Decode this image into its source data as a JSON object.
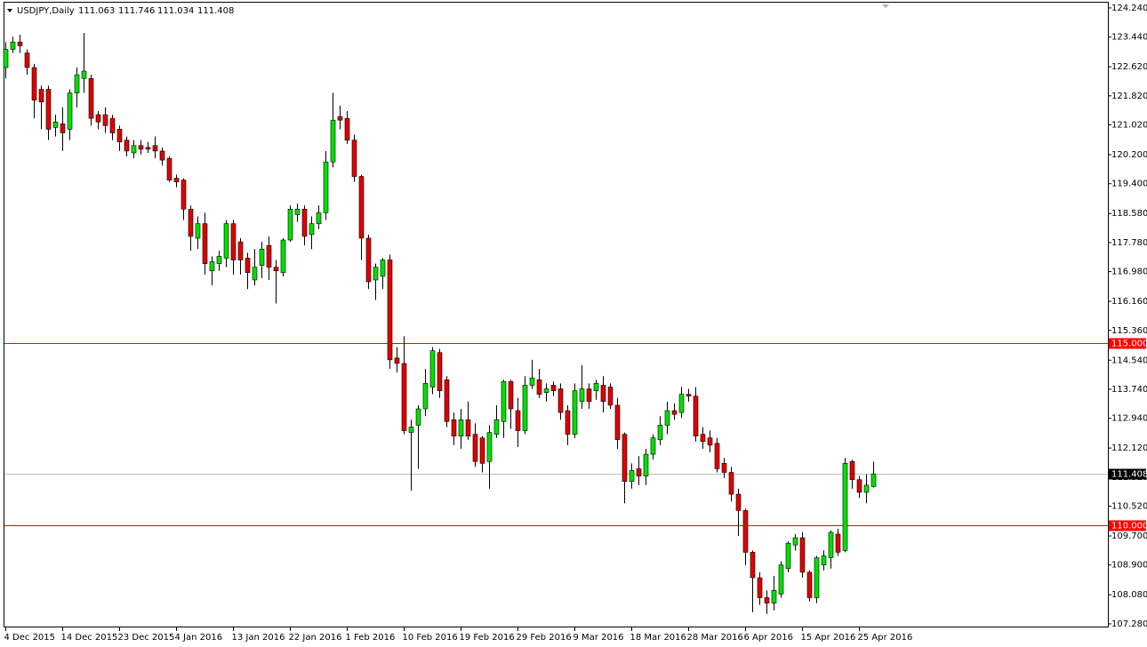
{
  "chart_data": {
    "type": "candlestick",
    "title": "USDJPY,Daily",
    "categories": [
      "4 Dec 2015",
      null,
      null,
      null,
      null,
      null,
      null,
      null,
      "14 Dec 2015",
      null,
      null,
      null,
      null,
      null,
      null,
      null,
      "23 Dec 2015",
      null,
      null,
      null,
      null,
      null,
      null,
      null,
      "4 Jan 2016",
      null,
      null,
      null,
      null,
      null,
      null,
      null,
      "13 Jan 2016",
      null,
      null,
      null,
      null,
      null,
      null,
      null,
      "22 Jan 2016",
      null,
      null,
      null,
      null,
      null,
      null,
      null,
      "1 Feb 2016",
      null,
      null,
      null,
      null,
      null,
      null,
      null,
      "10 Feb 2016",
      null,
      null,
      null,
      null,
      null,
      null,
      null,
      "19 Feb 2016",
      null,
      null,
      null,
      null,
      null,
      null,
      null,
      "29 Feb 2016",
      null,
      null,
      null,
      null,
      null,
      null,
      null,
      "9 Mar 2016",
      null,
      null,
      null,
      null,
      null,
      null,
      null,
      "18 Mar 2016",
      null,
      null,
      null,
      null,
      null,
      null,
      null,
      "28 Mar 2016",
      null,
      null,
      null,
      null,
      null,
      null,
      null,
      "6 Apr 2016",
      null,
      null,
      null,
      null,
      null,
      null,
      null,
      "15 Apr 2016",
      null,
      null,
      null,
      null,
      null,
      null,
      null,
      "25 Apr 2016",
      null,
      null
    ],
    "open": [
      122.6,
      123.1,
      123.3,
      123.0,
      122.6,
      122.0,
      122.0,
      120.95,
      121.05,
      120.9,
      121.9,
      122.3,
      122.3,
      121.3,
      121.3,
      121.2,
      120.9,
      120.6,
      120.25,
      120.45,
      120.4,
      120.45,
      120.3,
      120.1,
      119.55,
      119.5,
      118.7,
      117.9,
      118.3,
      117.0,
      117.2,
      117.35,
      118.3,
      117.8,
      117.35,
      116.75,
      117.15,
      117.7,
      117.1,
      116.95,
      117.85,
      118.55,
      118.7,
      118.0,
      118.3,
      118.6,
      120.0,
      121.25,
      121.2,
      120.6,
      119.6,
      117.9,
      116.75,
      116.85,
      117.3,
      114.6,
      114.45,
      112.55,
      112.75,
      113.2,
      113.8,
      114.75,
      114.0,
      112.9,
      112.45,
      112.9,
      112.5,
      112.4,
      111.75,
      112.5,
      112.85,
      113.95,
      113.15,
      112.6,
      113.85,
      114.0,
      113.65,
      113.85,
      113.75,
      113.15,
      112.5,
      113.4,
      113.75,
      113.7,
      113.85,
      113.8,
      113.3,
      112.5,
      111.2,
      111.55,
      111.35,
      111.95,
      112.35,
      112.75,
      113.15,
      113.1,
      113.6,
      113.55,
      112.5,
      112.4,
      112.25,
      111.7,
      111.45,
      110.85,
      110.4,
      109.25,
      108.55,
      108.0,
      107.85,
      108.1,
      108.8,
      109.45,
      109.65,
      108.7,
      108.0,
      108.9,
      109.1,
      109.75,
      109.3,
      111.75,
      111.25,
      110.9,
      111.063
    ],
    "high": [
      123.3,
      123.45,
      123.5,
      123.1,
      122.7,
      122.1,
      122.1,
      121.3,
      121.5,
      122.0,
      122.6,
      123.55,
      122.4,
      121.4,
      121.5,
      121.3,
      121.0,
      120.7,
      120.6,
      120.6,
      120.55,
      120.7,
      120.4,
      120.15,
      119.65,
      119.55,
      118.8,
      118.5,
      118.6,
      117.4,
      117.55,
      118.4,
      118.4,
      117.9,
      117.5,
      117.6,
      117.8,
      117.95,
      117.3,
      117.9,
      118.8,
      118.85,
      118.8,
      118.5,
      118.8,
      120.3,
      121.9,
      121.55,
      121.4,
      120.75,
      119.65,
      118.0,
      117.2,
      117.35,
      117.45,
      114.9,
      115.2,
      112.9,
      113.3,
      114.3,
      114.9,
      114.85,
      114.1,
      113.1,
      113.2,
      113.4,
      112.8,
      112.45,
      112.75,
      113.3,
      114.0,
      114.0,
      113.5,
      114.1,
      114.55,
      114.3,
      113.9,
      113.95,
      113.9,
      113.3,
      113.9,
      114.4,
      113.9,
      114.0,
      114.1,
      113.9,
      113.5,
      112.55,
      111.7,
      111.9,
      112.1,
      112.5,
      113.0,
      113.4,
      113.35,
      113.8,
      113.75,
      113.8,
      112.7,
      112.6,
      112.4,
      111.85,
      111.6,
      111.0,
      110.45,
      109.3,
      108.7,
      108.2,
      108.6,
      109.0,
      109.55,
      109.75,
      109.8,
      108.75,
      109.15,
      109.3,
      109.85,
      109.9,
      111.85,
      111.8,
      111.35,
      111.4,
      111.746
    ],
    "low": [
      122.3,
      123.0,
      123.0,
      122.4,
      121.2,
      120.9,
      120.6,
      120.7,
      120.3,
      120.6,
      121.5,
      121.9,
      121.0,
      120.9,
      120.8,
      120.6,
      120.3,
      120.15,
      120.1,
      120.2,
      120.25,
      120.1,
      119.9,
      119.45,
      119.3,
      118.4,
      117.55,
      117.6,
      116.9,
      116.6,
      117.0,
      117.1,
      116.9,
      116.9,
      116.5,
      116.6,
      116.8,
      116.75,
      116.1,
      116.85,
      117.8,
      118.35,
      117.7,
      117.6,
      118.15,
      118.4,
      119.85,
      120.9,
      120.5,
      119.45,
      117.3,
      116.5,
      116.2,
      116.5,
      114.3,
      114.2,
      112.5,
      110.95,
      111.55,
      113.0,
      113.6,
      113.5,
      112.7,
      112.2,
      112.1,
      112.35,
      111.6,
      111.45,
      111.0,
      112.4,
      112.4,
      112.65,
      112.15,
      112.5,
      113.75,
      113.5,
      113.4,
      113.55,
      112.9,
      112.2,
      112.4,
      113.2,
      113.2,
      113.45,
      113.1,
      113.2,
      112.1,
      110.6,
      111.0,
      111.1,
      111.1,
      111.8,
      112.2,
      112.5,
      112.9,
      112.95,
      113.4,
      112.3,
      112.1,
      112.0,
      111.45,
      111.3,
      110.65,
      109.7,
      108.9,
      107.6,
      107.8,
      107.55,
      107.65,
      108.0,
      108.7,
      109.3,
      108.55,
      107.9,
      107.85,
      108.75,
      108.8,
      109.15,
      109.25,
      111.0,
      110.75,
      110.6,
      111.034
    ],
    "close": [
      123.1,
      123.3,
      123.2,
      122.6,
      121.7,
      121.65,
      120.9,
      121.1,
      120.8,
      121.9,
      122.4,
      122.5,
      121.2,
      121.1,
      121.0,
      120.8,
      120.55,
      120.3,
      120.45,
      120.35,
      120.35,
      120.3,
      120.05,
      119.5,
      119.45,
      118.7,
      117.95,
      118.3,
      117.2,
      117.25,
      117.4,
      118.3,
      117.3,
      117.3,
      116.95,
      117.1,
      117.6,
      117.1,
      117.0,
      117.85,
      118.7,
      118.7,
      117.95,
      118.3,
      118.6,
      120.0,
      121.15,
      121.15,
      120.6,
      119.6,
      117.9,
      116.7,
      117.1,
      117.3,
      114.55,
      114.45,
      112.6,
      112.7,
      113.2,
      113.9,
      114.8,
      113.7,
      112.85,
      112.45,
      112.9,
      112.45,
      111.75,
      111.7,
      112.55,
      112.9,
      113.95,
      113.2,
      112.6,
      113.85,
      114.05,
      113.6,
      113.75,
      113.7,
      113.1,
      112.5,
      113.7,
      113.75,
      113.4,
      113.9,
      113.4,
      113.3,
      112.35,
      111.2,
      111.5,
      111.35,
      111.95,
      112.4,
      112.75,
      113.15,
      113.05,
      113.6,
      113.55,
      112.45,
      112.3,
      112.2,
      111.55,
      111.45,
      110.85,
      110.4,
      109.25,
      108.55,
      108.0,
      107.85,
      108.2,
      108.9,
      109.5,
      109.65,
      108.7,
      108.0,
      109.1,
      109.15,
      109.8,
      109.25,
      111.7,
      111.25,
      110.9,
      111.1,
      111.408
    ],
    "up_color": "#00e000",
    "down_color": "#e00000",
    "ylim": [
      107.18,
      124.41
    ],
    "yticks": [
      {
        "value": 124.24,
        "label": "124.240"
      },
      {
        "value": 123.44,
        "label": "123.440"
      },
      {
        "value": 122.62,
        "label": "122.620"
      },
      {
        "value": 121.82,
        "label": "121.820"
      },
      {
        "value": 121.02,
        "label": "121.020"
      },
      {
        "value": 120.2,
        "label": "120.200"
      },
      {
        "value": 119.4,
        "label": "119.400"
      },
      {
        "value": 118.58,
        "label": "118.580"
      },
      {
        "value": 117.78,
        "label": "117.780"
      },
      {
        "value": 116.98,
        "label": "116.980"
      },
      {
        "value": 116.16,
        "label": "116.160"
      },
      {
        "value": 115.36,
        "label": "115.360"
      },
      {
        "value": 114.54,
        "label": "114.540"
      },
      {
        "value": 113.74,
        "label": "113.740"
      },
      {
        "value": 112.94,
        "label": "112.940"
      },
      {
        "value": 112.12,
        "label": "112.120"
      },
      {
        "value": 111.32,
        "label": "111.320"
      },
      {
        "value": 110.52,
        "label": "110.520"
      },
      {
        "value": 109.7,
        "label": "109.700"
      },
      {
        "value": 108.9,
        "label": "108.900"
      },
      {
        "value": 108.08,
        "label": "108.080"
      },
      {
        "value": 107.28,
        "label": "107.280"
      }
    ],
    "hlines": [
      {
        "value": 115,
        "label": "115.000",
        "color": "#ff0000",
        "label_color": "#ff0000"
      },
      {
        "value": 110,
        "label": "110.000",
        "color": "#ff0000",
        "label_color": "#ff0000"
      },
      {
        "value": 111.408,
        "label": "111.408",
        "color": "#c0c0c0",
        "label_color": "#000000"
      }
    ]
  }
}
